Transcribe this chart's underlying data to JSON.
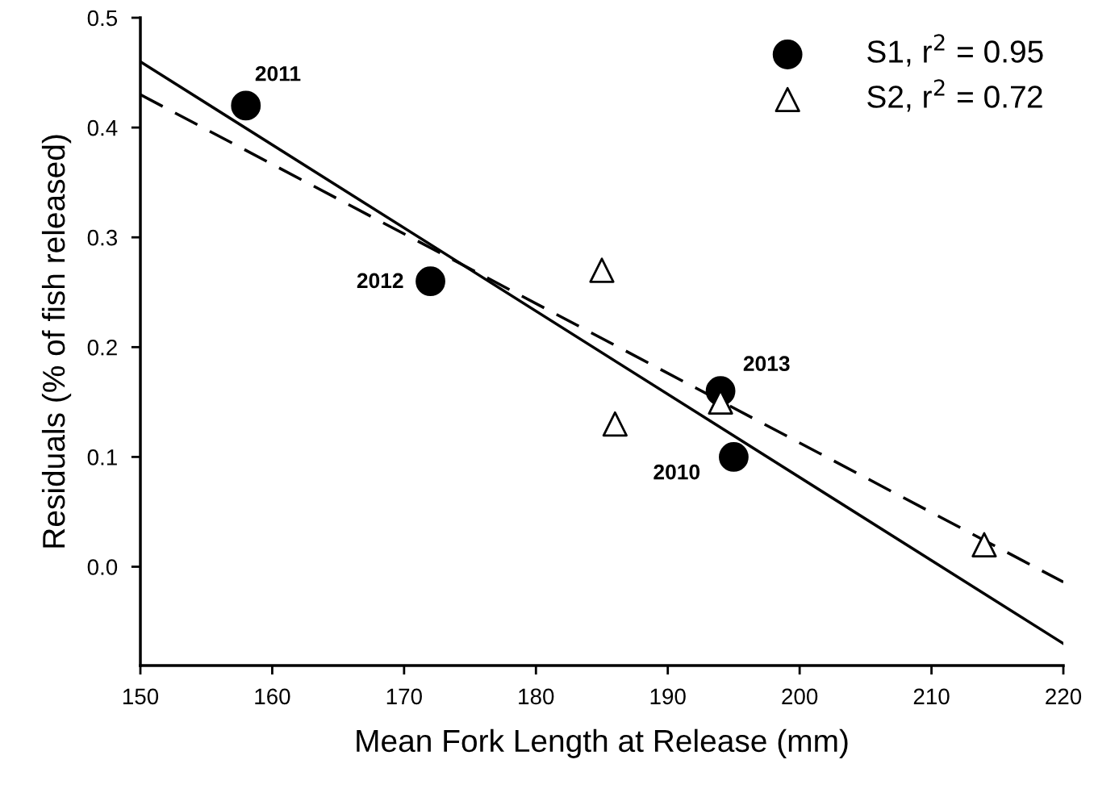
{
  "chart_data": {
    "type": "scatter",
    "xlabel": "Mean Fork Length at Release (mm)",
    "ylabel": "Residuals (% of fish released)",
    "xlim": [
      150,
      220
    ],
    "xticks": [
      150,
      160,
      170,
      180,
      190,
      200,
      210,
      220
    ],
    "ylim": [
      -0.09,
      0.5
    ],
    "yticks": [
      {
        "value": 0,
        "label": "0.0"
      },
      {
        "value": 0.1,
        "label": "0.1"
      },
      {
        "value": 0.2,
        "label": "0.2"
      },
      {
        "value": 0.3,
        "label": "0.3"
      },
      {
        "value": 0.4,
        "label": "0.4"
      },
      {
        "value": 0.5,
        "label": "0.5"
      }
    ],
    "grid": false,
    "legend": "top right",
    "series": [
      {
        "name": "S1, r$^{2}$ = 0.95",
        "marker": "circle",
        "color": "#000000",
        "x": [
          158,
          172,
          194,
          195
        ],
        "values": [
          0.42,
          0.26,
          0.16,
          0.1
        ]
      },
      {
        "name": "S2, r$^{2}$ = 0.72",
        "marker": "triangle",
        "color": "#000000",
        "x": [
          185,
          186,
          194,
          214
        ],
        "values": [
          0.27,
          0.13,
          0.15,
          0.02
        ]
      },
      {
        "type": "line",
        "line_style": "solid",
        "color": "#000000",
        "x": [
          150,
          220
        ],
        "values": [
          0.46,
          -0.07
        ]
      },
      {
        "type": "line",
        "line_style": "dashed",
        "color": "#000000",
        "x": [
          150,
          220
        ],
        "values": [
          0.43,
          -0.014
        ]
      }
    ],
    "annotations": [
      {
        "text": "2011",
        "x": 158,
        "y": 0.42
      },
      {
        "text": "2012",
        "x": 172,
        "y": 0.26
      },
      {
        "text": "2013",
        "x": 194,
        "y": 0.16
      },
      {
        "text": "2010",
        "x": 195,
        "y": 0.1
      }
    ]
  }
}
